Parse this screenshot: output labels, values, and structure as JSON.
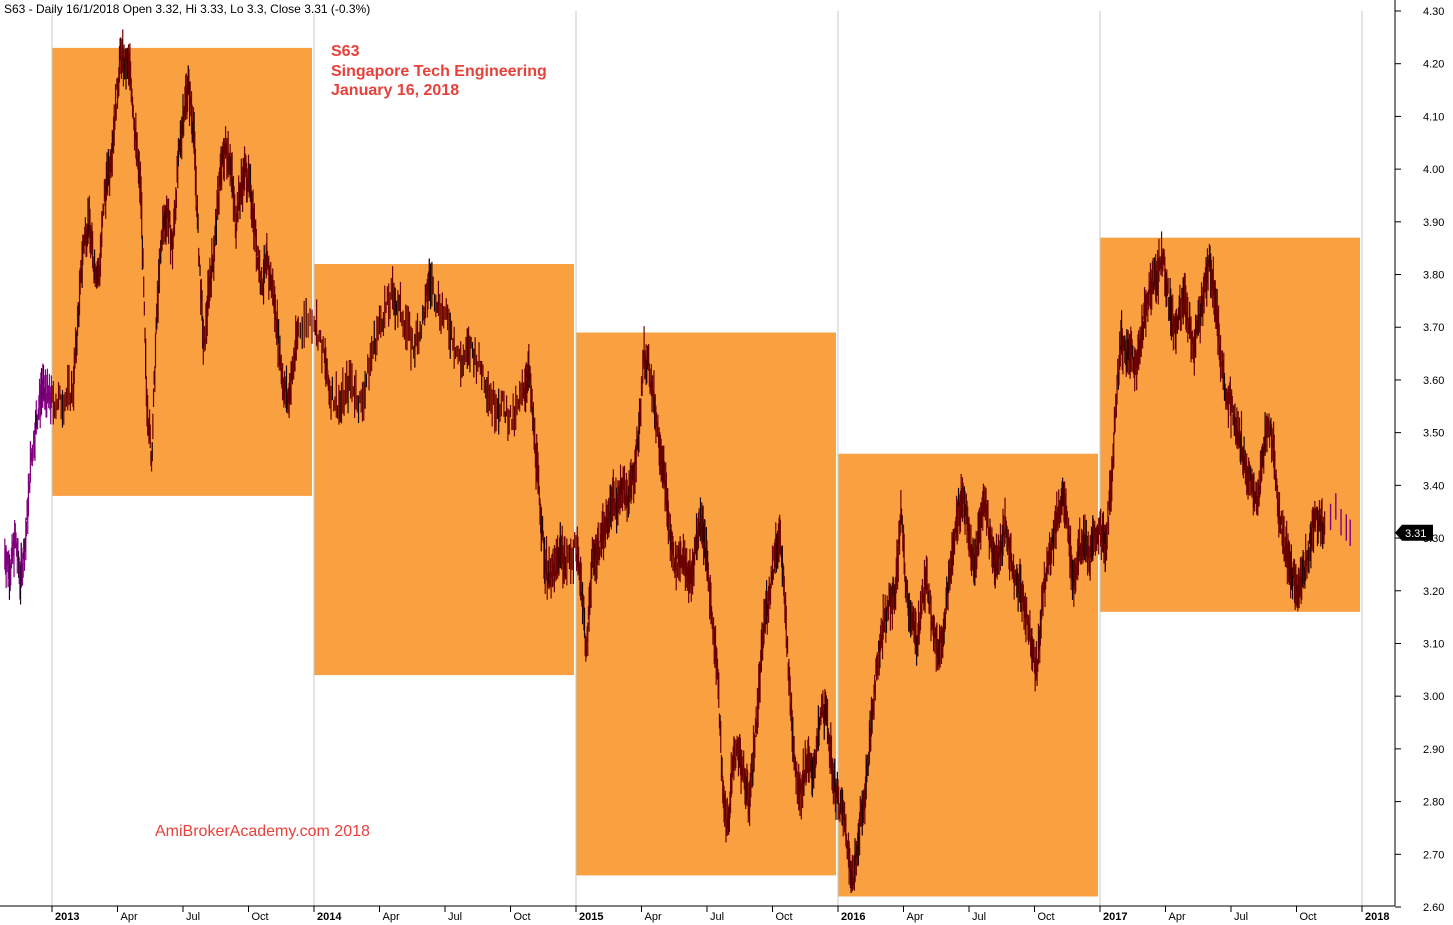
{
  "header": "S63 - Daily 16/1/2018 Open 3.32, Hi 3.33, Lo 3.3, Close 3.31 (-0.3%)",
  "annotation": {
    "symbol": "S63",
    "name": "Singapore Tech Engineering",
    "date": "January 16, 2018"
  },
  "watermark": "AmiBrokerAcademy.com 2018",
  "last_label": "3.31",
  "colors": {
    "box": "#f9a040",
    "candle": "#6b0000",
    "pre_period": "#800080",
    "text_accent": "#e8403a",
    "last_badge": "#000000"
  },
  "chart_data": {
    "type": "line",
    "title": "",
    "xlabel": "",
    "ylabel": "",
    "ylim": [
      2.6,
      4.3
    ],
    "y_ticks": [
      "4.30",
      "4.20",
      "4.10",
      "4.00",
      "3.90",
      "3.80",
      "3.70",
      "3.60",
      "3.50",
      "3.40",
      "3.30",
      "3.20",
      "3.10",
      "3.00",
      "2.90",
      "2.80",
      "2.70",
      "2.60"
    ],
    "x_ticks": [
      {
        "label": "2013",
        "year": true,
        "t": 2013.0
      },
      {
        "label": "Apr",
        "year": false,
        "t": 2013.25
      },
      {
        "label": "Jul",
        "year": false,
        "t": 2013.5
      },
      {
        "label": "Oct",
        "year": false,
        "t": 2013.75
      },
      {
        "label": "2014",
        "year": true,
        "t": 2014.0
      },
      {
        "label": "Apr",
        "year": false,
        "t": 2014.25
      },
      {
        "label": "Jul",
        "year": false,
        "t": 2014.5
      },
      {
        "label": "Oct",
        "year": false,
        "t": 2014.75
      },
      {
        "label": "2015",
        "year": true,
        "t": 2015.0
      },
      {
        "label": "Apr",
        "year": false,
        "t": 2015.25
      },
      {
        "label": "Jul",
        "year": false,
        "t": 2015.5
      },
      {
        "label": "Oct",
        "year": false,
        "t": 2015.75
      },
      {
        "label": "2016",
        "year": true,
        "t": 2016.0
      },
      {
        "label": "Apr",
        "year": false,
        "t": 2016.25
      },
      {
        "label": "Jul",
        "year": false,
        "t": 2016.5
      },
      {
        "label": "Oct",
        "year": false,
        "t": 2016.75
      },
      {
        "label": "2017",
        "year": true,
        "t": 2017.0
      },
      {
        "label": "Apr",
        "year": false,
        "t": 2017.25
      },
      {
        "label": "Jul",
        "year": false,
        "t": 2017.5
      },
      {
        "label": "Oct",
        "year": false,
        "t": 2017.75
      },
      {
        "label": "2018",
        "year": true,
        "t": 2018.0
      }
    ],
    "yearly_ranges": [
      {
        "year": "2013",
        "high": 4.23,
        "low": 3.38
      },
      {
        "year": "2014",
        "high": 3.82,
        "low": 3.04
      },
      {
        "year": "2015",
        "high": 3.69,
        "low": 2.66
      },
      {
        "year": "2016",
        "high": 3.46,
        "low": 2.62
      },
      {
        "year": "2017",
        "high": 3.87,
        "low": 3.16
      }
    ],
    "series": [
      {
        "points": [
          [
            2012.82,
            3.27
          ],
          [
            2012.84,
            3.24
          ],
          [
            2012.86,
            3.3
          ],
          [
            2012.88,
            3.22
          ],
          [
            2012.9,
            3.3
          ],
          [
            2012.92,
            3.45
          ],
          [
            2012.94,
            3.52
          ],
          [
            2012.96,
            3.58
          ],
          [
            2012.98,
            3.57
          ],
          [
            2013.0,
            3.56
          ],
          [
            2013.04,
            3.56
          ],
          [
            2013.08,
            3.58
          ],
          [
            2013.1,
            3.72
          ],
          [
            2013.12,
            3.86
          ],
          [
            2013.14,
            3.9
          ],
          [
            2013.16,
            3.82
          ],
          [
            2013.18,
            3.8
          ],
          [
            2013.2,
            3.95
          ],
          [
            2013.22,
            4.0
          ],
          [
            2013.24,
            4.1
          ],
          [
            2013.26,
            4.21
          ],
          [
            2013.28,
            4.2
          ],
          [
            2013.3,
            4.18
          ],
          [
            2013.32,
            4.05
          ],
          [
            2013.34,
            3.95
          ],
          [
            2013.36,
            3.58
          ],
          [
            2013.38,
            3.45
          ],
          [
            2013.4,
            3.72
          ],
          [
            2013.42,
            3.88
          ],
          [
            2013.44,
            3.92
          ],
          [
            2013.46,
            3.85
          ],
          [
            2013.48,
            4.0
          ],
          [
            2013.5,
            4.1
          ],
          [
            2013.52,
            4.16
          ],
          [
            2013.54,
            4.08
          ],
          [
            2013.56,
            3.85
          ],
          [
            2013.58,
            3.65
          ],
          [
            2013.6,
            3.78
          ],
          [
            2013.62,
            3.85
          ],
          [
            2013.64,
            3.98
          ],
          [
            2013.66,
            4.04
          ],
          [
            2013.68,
            4.02
          ],
          [
            2013.7,
            3.9
          ],
          [
            2013.72,
            3.96
          ],
          [
            2013.74,
            4.0
          ],
          [
            2013.76,
            3.95
          ],
          [
            2013.78,
            3.86
          ],
          [
            2013.8,
            3.78
          ],
          [
            2013.82,
            3.82
          ],
          [
            2013.84,
            3.78
          ],
          [
            2013.86,
            3.7
          ],
          [
            2013.88,
            3.6
          ],
          [
            2013.9,
            3.56
          ],
          [
            2013.92,
            3.62
          ],
          [
            2013.94,
            3.7
          ],
          [
            2014.0,
            3.72
          ],
          [
            2014.04,
            3.64
          ],
          [
            2014.06,
            3.58
          ],
          [
            2014.1,
            3.55
          ],
          [
            2014.14,
            3.6
          ],
          [
            2014.18,
            3.55
          ],
          [
            2014.22,
            3.65
          ],
          [
            2014.26,
            3.72
          ],
          [
            2014.3,
            3.76
          ],
          [
            2014.34,
            3.72
          ],
          [
            2014.38,
            3.66
          ],
          [
            2014.42,
            3.72
          ],
          [
            2014.44,
            3.79
          ],
          [
            2014.48,
            3.74
          ],
          [
            2014.52,
            3.7
          ],
          [
            2014.56,
            3.63
          ],
          [
            2014.6,
            3.66
          ],
          [
            2014.64,
            3.62
          ],
          [
            2014.68,
            3.56
          ],
          [
            2014.72,
            3.55
          ],
          [
            2014.76,
            3.52
          ],
          [
            2014.8,
            3.58
          ],
          [
            2014.82,
            3.62
          ],
          [
            2014.84,
            3.5
          ],
          [
            2014.86,
            3.38
          ],
          [
            2014.88,
            3.26
          ],
          [
            2014.9,
            3.22
          ],
          [
            2014.92,
            3.24
          ],
          [
            2014.94,
            3.28
          ],
          [
            2014.96,
            3.25
          ],
          [
            2015.0,
            3.28
          ],
          [
            2015.02,
            3.22
          ],
          [
            2015.04,
            3.08
          ],
          [
            2015.06,
            3.25
          ],
          [
            2015.08,
            3.28
          ],
          [
            2015.1,
            3.3
          ],
          [
            2015.12,
            3.33
          ],
          [
            2015.14,
            3.38
          ],
          [
            2015.16,
            3.36
          ],
          [
            2015.18,
            3.4
          ],
          [
            2015.2,
            3.38
          ],
          [
            2015.22,
            3.42
          ],
          [
            2015.24,
            3.5
          ],
          [
            2015.26,
            3.65
          ],
          [
            2015.28,
            3.62
          ],
          [
            2015.3,
            3.55
          ],
          [
            2015.32,
            3.48
          ],
          [
            2015.34,
            3.4
          ],
          [
            2015.36,
            3.3
          ],
          [
            2015.38,
            3.25
          ],
          [
            2015.4,
            3.27
          ],
          [
            2015.42,
            3.24
          ],
          [
            2015.44,
            3.22
          ],
          [
            2015.46,
            3.3
          ],
          [
            2015.48,
            3.34
          ],
          [
            2015.5,
            3.25
          ],
          [
            2015.52,
            3.15
          ],
          [
            2015.54,
            3.05
          ],
          [
            2015.56,
            2.82
          ],
          [
            2015.58,
            2.75
          ],
          [
            2015.6,
            2.88
          ],
          [
            2015.62,
            2.9
          ],
          [
            2015.64,
            2.85
          ],
          [
            2015.66,
            2.8
          ],
          [
            2015.68,
            2.9
          ],
          [
            2015.7,
            3.02
          ],
          [
            2015.72,
            3.15
          ],
          [
            2015.74,
            3.2
          ],
          [
            2015.76,
            3.28
          ],
          [
            2015.78,
            3.3
          ],
          [
            2015.8,
            3.15
          ],
          [
            2015.82,
            2.98
          ],
          [
            2015.84,
            2.85
          ],
          [
            2015.86,
            2.82
          ],
          [
            2015.88,
            2.88
          ],
          [
            2015.9,
            2.85
          ],
          [
            2015.92,
            2.9
          ],
          [
            2015.94,
            2.98
          ],
          [
            2015.96,
            2.95
          ],
          [
            2015.98,
            2.85
          ],
          [
            2016.0,
            2.8
          ],
          [
            2016.02,
            2.78
          ],
          [
            2016.04,
            2.7
          ],
          [
            2016.06,
            2.65
          ],
          [
            2016.08,
            2.75
          ],
          [
            2016.1,
            2.8
          ],
          [
            2016.12,
            2.9
          ],
          [
            2016.14,
            3.02
          ],
          [
            2016.16,
            3.1
          ],
          [
            2016.18,
            3.15
          ],
          [
            2016.2,
            3.18
          ],
          [
            2016.22,
            3.2
          ],
          [
            2016.24,
            3.35
          ],
          [
            2016.26,
            3.2
          ],
          [
            2016.28,
            3.15
          ],
          [
            2016.3,
            3.1
          ],
          [
            2016.32,
            3.18
          ],
          [
            2016.34,
            3.22
          ],
          [
            2016.36,
            3.15
          ],
          [
            2016.38,
            3.08
          ],
          [
            2016.4,
            3.12
          ],
          [
            2016.42,
            3.2
          ],
          [
            2016.44,
            3.28
          ],
          [
            2016.46,
            3.36
          ],
          [
            2016.48,
            3.38
          ],
          [
            2016.5,
            3.3
          ],
          [
            2016.52,
            3.24
          ],
          [
            2016.54,
            3.32
          ],
          [
            2016.56,
            3.38
          ],
          [
            2016.58,
            3.3
          ],
          [
            2016.6,
            3.25
          ],
          [
            2016.62,
            3.28
          ],
          [
            2016.64,
            3.32
          ],
          [
            2016.66,
            3.26
          ],
          [
            2016.68,
            3.22
          ],
          [
            2016.7,
            3.2
          ],
          [
            2016.72,
            3.15
          ],
          [
            2016.74,
            3.1
          ],
          [
            2016.76,
            3.05
          ],
          [
            2016.78,
            3.18
          ],
          [
            2016.8,
            3.25
          ],
          [
            2016.82,
            3.3
          ],
          [
            2016.84,
            3.35
          ],
          [
            2016.86,
            3.38
          ],
          [
            2016.88,
            3.3
          ],
          [
            2016.9,
            3.22
          ],
          [
            2016.92,
            3.28
          ],
          [
            2016.94,
            3.3
          ],
          [
            2016.96,
            3.26
          ],
          [
            2016.98,
            3.3
          ],
          [
            2017.0,
            3.32
          ],
          [
            2017.02,
            3.28
          ],
          [
            2017.04,
            3.38
          ],
          [
            2017.06,
            3.55
          ],
          [
            2017.08,
            3.68
          ],
          [
            2017.1,
            3.64
          ],
          [
            2017.12,
            3.66
          ],
          [
            2017.14,
            3.62
          ],
          [
            2017.16,
            3.7
          ],
          [
            2017.18,
            3.75
          ],
          [
            2017.2,
            3.78
          ],
          [
            2017.22,
            3.8
          ],
          [
            2017.24,
            3.84
          ],
          [
            2017.26,
            3.76
          ],
          [
            2017.28,
            3.7
          ],
          [
            2017.3,
            3.72
          ],
          [
            2017.32,
            3.76
          ],
          [
            2017.34,
            3.7
          ],
          [
            2017.36,
            3.66
          ],
          [
            2017.38,
            3.72
          ],
          [
            2017.4,
            3.78
          ],
          [
            2017.42,
            3.82
          ],
          [
            2017.44,
            3.76
          ],
          [
            2017.46,
            3.65
          ],
          [
            2017.48,
            3.58
          ],
          [
            2017.5,
            3.55
          ],
          [
            2017.52,
            3.5
          ],
          [
            2017.54,
            3.48
          ],
          [
            2017.56,
            3.42
          ],
          [
            2017.58,
            3.4
          ],
          [
            2017.6,
            3.36
          ],
          [
            2017.62,
            3.45
          ],
          [
            2017.64,
            3.52
          ],
          [
            2017.66,
            3.48
          ],
          [
            2017.68,
            3.36
          ],
          [
            2017.7,
            3.3
          ],
          [
            2017.72,
            3.25
          ],
          [
            2017.74,
            3.22
          ],
          [
            2017.76,
            3.2
          ],
          [
            2017.78,
            3.24
          ],
          [
            2017.8,
            3.28
          ],
          [
            2017.82,
            3.35
          ],
          [
            2017.84,
            3.33
          ],
          [
            2017.86,
            3.31
          ]
        ]
      }
    ]
  }
}
